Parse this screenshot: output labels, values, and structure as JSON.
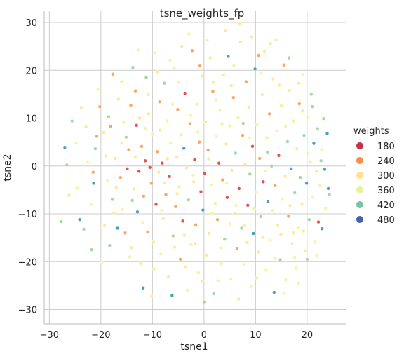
{
  "chart_data": {
    "type": "scatter",
    "title": "tsne_weights_fp",
    "xlabel": "tsne1",
    "ylabel": "tsne2",
    "xlim": [
      -31,
      27.5
    ],
    "ylim": [
      -33,
      32.5
    ],
    "xticks": [
      -30,
      -20,
      -10,
      0,
      10,
      20
    ],
    "yticks": [
      -30,
      -20,
      -10,
      0,
      10,
      20,
      30
    ],
    "xtick_labels": [
      "−30",
      "−20",
      "−10",
      "0",
      "10",
      "20"
    ],
    "ytick_labels": [
      "−30",
      "−20",
      "−10",
      "0",
      "10",
      "20",
      "30"
    ],
    "grid": true,
    "legend": {
      "title": "weights",
      "placement": "right",
      "entries": [
        {
          "label": "180",
          "color": "#c7304a"
        },
        {
          "label": "240",
          "color": "#f58e4d"
        },
        {
          "label": "300",
          "color": "#fde18f"
        },
        {
          "label": "360",
          "color": "#e4f39a"
        },
        {
          "label": "420",
          "color": "#72c6a3"
        },
        {
          "label": "480",
          "color": "#4463ac"
        }
      ]
    },
    "colorscale": {
      "domain": [
        120,
        540
      ],
      "colors": [
        "#9e0142",
        "#d53e4f",
        "#f46d43",
        "#fdae61",
        "#fee08b",
        "#ffffbf",
        "#e6f598",
        "#abdda4",
        "#66c2a5",
        "#3288bd",
        "#5e4fa2"
      ]
    },
    "points": [
      [
        -27.7,
        -11.6,
        420
      ],
      [
        -27.0,
        3.9,
        480
      ],
      [
        -26.6,
        0.2,
        420
      ],
      [
        -25.6,
        9.4,
        420
      ],
      [
        -24.6,
        -4.6,
        360
      ],
      [
        -24.1,
        -11.2,
        480
      ],
      [
        -23.3,
        -13.2,
        420
      ],
      [
        -22.6,
        0.9,
        360
      ],
      [
        -21.8,
        -17.5,
        420
      ],
      [
        -21.5,
        -1.3,
        240
      ],
      [
        -21.4,
        -3.6,
        480
      ],
      [
        -21.1,
        3.6,
        420
      ],
      [
        -20.2,
        12.4,
        240
      ],
      [
        -19.9,
        -20.2,
        360
      ],
      [
        -19.5,
        7.0,
        300
      ],
      [
        -18.7,
        -3.1,
        360
      ],
      [
        -18.3,
        -16.6,
        420
      ],
      [
        -18.1,
        8.3,
        240
      ],
      [
        -17.8,
        -7.0,
        420
      ],
      [
        -17.7,
        19.2,
        240
      ],
      [
        -17.2,
        1.6,
        300
      ],
      [
        -16.8,
        -13.0,
        480
      ],
      [
        -16.6,
        14.0,
        300
      ],
      [
        -16.2,
        -2.4,
        240
      ],
      [
        -15.8,
        -9.1,
        360
      ],
      [
        -15.6,
        9.1,
        360
      ],
      [
        -15.3,
        -14.0,
        240
      ],
      [
        -14.9,
        -0.6,
        180
      ],
      [
        -14.6,
        3.4,
        240
      ],
      [
        -14.2,
        12.7,
        240
      ],
      [
        -14.0,
        -17.1,
        300
      ],
      [
        -13.8,
        20.6,
        420
      ],
      [
        -13.6,
        -4.8,
        300
      ],
      [
        -13.3,
        15.7,
        240
      ],
      [
        -13.1,
        8.5,
        180
      ],
      [
        -12.9,
        -9.6,
        480
      ],
      [
        -12.6,
        -1.1,
        180
      ],
      [
        -12.3,
        -20.4,
        300
      ],
      [
        -12.1,
        4.1,
        240
      ],
      [
        -11.8,
        -25.5,
        480
      ],
      [
        -11.7,
        -6.3,
        240
      ],
      [
        -11.4,
        1.1,
        180
      ],
      [
        -11.2,
        18.5,
        420
      ],
      [
        -10.9,
        -13.8,
        240
      ],
      [
        -10.7,
        10.9,
        300
      ],
      [
        -10.5,
        -0.3,
        180
      ],
      [
        -10.2,
        -3.6,
        240
      ],
      [
        -10.0,
        6.6,
        300
      ],
      [
        -9.8,
        -15.9,
        300
      ],
      [
        -9.5,
        23.7,
        360
      ],
      [
        -9.3,
        -8.0,
        180
      ],
      [
        -9.1,
        3.0,
        240
      ],
      [
        -8.8,
        -1.3,
        300
      ],
      [
        -8.6,
        13.4,
        240
      ],
      [
        -8.4,
        -18.4,
        360
      ],
      [
        -8.1,
        0.6,
        180
      ],
      [
        -7.9,
        -11.0,
        300
      ],
      [
        -7.7,
        17.3,
        420
      ],
      [
        -7.4,
        -6.0,
        240
      ],
      [
        -7.2,
        9.4,
        360
      ],
      [
        -6.9,
        -23.2,
        300
      ],
      [
        -6.7,
        -2.2,
        180
      ],
      [
        -6.5,
        4.8,
        360
      ],
      [
        -6.2,
        -27.1,
        480
      ],
      [
        -6.0,
        -14.6,
        420
      ],
      [
        -5.8,
        20.5,
        300
      ],
      [
        -5.5,
        -8.5,
        240
      ],
      [
        -5.3,
        1.9,
        300
      ],
      [
        -5.1,
        11.8,
        240
      ],
      [
        -4.8,
        -4.4,
        360
      ],
      [
        -4.6,
        -19.5,
        240
      ],
      [
        -4.4,
        6.5,
        300
      ],
      [
        -4.1,
        -11.5,
        180
      ],
      [
        -3.9,
        3.7,
        480
      ],
      [
        -3.7,
        15.2,
        180
      ],
      [
        -3.4,
        -0.4,
        300
      ],
      [
        -3.2,
        -26.0,
        360
      ],
      [
        -3.0,
        -7.1,
        420
      ],
      [
        -2.7,
        8.8,
        240
      ],
      [
        -2.5,
        -16.4,
        360
      ],
      [
        -2.3,
        24.1,
        240
      ],
      [
        -2.0,
        -3.3,
        300
      ],
      [
        -1.8,
        1.3,
        180
      ],
      [
        -1.6,
        -12.3,
        240
      ],
      [
        -1.3,
        12.9,
        300
      ],
      [
        -1.1,
        -22.3,
        360
      ],
      [
        -0.9,
        5.0,
        240
      ],
      [
        -0.6,
        -5.4,
        180
      ],
      [
        -0.4,
        18.8,
        300
      ],
      [
        -0.2,
        -9.2,
        480
      ],
      [
        0.1,
        -1.5,
        180
      ],
      [
        0.3,
        9.2,
        300
      ],
      [
        0.5,
        -18.6,
        300
      ],
      [
        0.8,
        3.3,
        240
      ],
      [
        1.0,
        -14.1,
        300
      ],
      [
        1.2,
        22.6,
        300
      ],
      [
        1.5,
        -4.0,
        360
      ],
      [
        1.7,
        15.6,
        240
      ],
      [
        1.9,
        -26.7,
        420
      ],
      [
        2.2,
        -7.8,
        300
      ],
      [
        2.4,
        6.2,
        360
      ],
      [
        2.6,
        -11.2,
        240
      ],
      [
        2.9,
        0.6,
        180
      ],
      [
        3.1,
        11.6,
        360
      ],
      [
        3.3,
        -20.4,
        300
      ],
      [
        3.6,
        -2.9,
        240
      ],
      [
        3.8,
        19.0,
        300
      ],
      [
        4.0,
        -15.3,
        420
      ],
      [
        4.3,
        4.6,
        300
      ],
      [
        4.5,
        -6.6,
        180
      ],
      [
        4.7,
        22.9,
        480
      ],
      [
        5.0,
        8.4,
        360
      ],
      [
        5.2,
        -23.6,
        360
      ],
      [
        5.4,
        -0.9,
        300
      ],
      [
        5.7,
        14.3,
        240
      ],
      [
        5.9,
        -10.0,
        300
      ],
      [
        6.1,
        2.7,
        420
      ],
      [
        6.4,
        -17.3,
        240
      ],
      [
        6.6,
        10.1,
        300
      ],
      [
        6.8,
        -4.7,
        180
      ],
      [
        7.1,
        25.9,
        300
      ],
      [
        7.3,
        -13.0,
        420
      ],
      [
        7.5,
        6.4,
        240
      ],
      [
        7.8,
        -20.6,
        360
      ],
      [
        8.0,
        0.4,
        300
      ],
      [
        8.2,
        17.6,
        240
      ],
      [
        8.5,
        -8.2,
        180
      ],
      [
        8.7,
        12.3,
        300
      ],
      [
        8.9,
        -1.7,
        420
      ],
      [
        9.2,
        -25.2,
        360
      ],
      [
        9.4,
        4.1,
        180
      ],
      [
        9.6,
        -14.1,
        480
      ],
      [
        9.9,
        20.3,
        480
      ],
      [
        10.1,
        -5.5,
        300
      ],
      [
        10.3,
        8.6,
        360
      ],
      [
        10.6,
        -18.0,
        300
      ],
      [
        10.8,
        1.6,
        240
      ],
      [
        11.0,
        -10.6,
        420
      ],
      [
        11.3,
        14.9,
        300
      ],
      [
        11.5,
        -3.3,
        180
      ],
      [
        11.7,
        24.0,
        300
      ],
      [
        12.0,
        -21.8,
        360
      ],
      [
        12.2,
        5.9,
        300
      ],
      [
        12.4,
        -7.5,
        480
      ],
      [
        12.7,
        10.9,
        240
      ],
      [
        12.9,
        -15.5,
        360
      ],
      [
        13.1,
        0.0,
        420
      ],
      [
        13.4,
        18.2,
        300
      ],
      [
        13.6,
        -26.4,
        480
      ],
      [
        13.8,
        -4.1,
        240
      ],
      [
        14.1,
        7.3,
        360
      ],
      [
        14.3,
        -12.4,
        300
      ],
      [
        14.5,
        2.2,
        180
      ],
      [
        14.8,
        -19.6,
        420
      ],
      [
        15.0,
        12.6,
        300
      ],
      [
        15.2,
        -7.0,
        360
      ],
      [
        15.5,
        21.1,
        240
      ],
      [
        15.7,
        -2.1,
        300
      ],
      [
        15.9,
        -23.8,
        360
      ],
      [
        16.2,
        5.1,
        420
      ],
      [
        16.4,
        -10.5,
        240
      ],
      [
        16.6,
        15.8,
        300
      ],
      [
        16.9,
        -0.6,
        480
      ],
      [
        17.1,
        -16.2,
        360
      ],
      [
        17.3,
        9.4,
        300
      ],
      [
        17.6,
        -5.6,
        420
      ],
      [
        17.8,
        -21.3,
        360
      ],
      [
        18.0,
        3.6,
        300
      ],
      [
        18.3,
        -12.9,
        360
      ],
      [
        18.5,
        13.0,
        240
      ],
      [
        18.7,
        -2.4,
        420
      ],
      [
        19.0,
        -8.0,
        300
      ],
      [
        19.2,
        19.1,
        360
      ],
      [
        19.4,
        6.4,
        420
      ],
      [
        19.7,
        -17.7,
        300
      ],
      [
        19.9,
        -3.6,
        480
      ],
      [
        20.1,
        10.1,
        360
      ],
      [
        20.4,
        -11.2,
        420
      ],
      [
        20.6,
        0.9,
        300
      ],
      [
        20.8,
        15.0,
        420
      ],
      [
        21.1,
        -6.5,
        360
      ],
      [
        21.3,
        4.7,
        480
      ],
      [
        21.5,
        -15.9,
        360
      ],
      [
        21.8,
        -1.1,
        300
      ],
      [
        22.0,
        7.8,
        420
      ],
      [
        22.2,
        -11.7,
        180
      ],
      [
        22.5,
        -4.1,
        360
      ],
      [
        22.7,
        1.1,
        420
      ],
      [
        22.9,
        -13.1,
        480
      ],
      [
        23.2,
        9.9,
        420
      ],
      [
        23.4,
        -0.7,
        480
      ],
      [
        23.6,
        -8.9,
        360
      ],
      [
        23.9,
        6.8,
        480
      ],
      [
        24.1,
        -4.7,
        480
      ],
      [
        24.3,
        -6.0,
        420
      ],
      [
        -24.8,
        4.8,
        360
      ],
      [
        -22.9,
        8.2,
        300
      ],
      [
        -20.6,
        16.0,
        360
      ],
      [
        -19.0,
        2.1,
        300
      ],
      [
        -17.5,
        -9.8,
        300
      ],
      [
        -16.0,
        17.6,
        300
      ],
      [
        -15.1,
        6.0,
        420
      ],
      [
        -13.9,
        -7.2,
        420
      ],
      [
        -12.8,
        24.2,
        360
      ],
      [
        -11.9,
        -11.8,
        360
      ],
      [
        -10.8,
        14.9,
        300
      ],
      [
        -9.7,
        -21.6,
        360
      ],
      [
        -8.5,
        7.5,
        300
      ],
      [
        -7.6,
        -3.5,
        300
      ],
      [
        -6.6,
        22.1,
        360
      ],
      [
        -5.7,
        -17.0,
        300
      ],
      [
        -4.9,
        17.5,
        360
      ],
      [
        -3.8,
        -14.5,
        300
      ],
      [
        -2.9,
        27.6,
        360
      ],
      [
        -2.1,
        -1.9,
        360
      ],
      [
        -1.2,
        7.1,
        360
      ],
      [
        -0.3,
        -24.1,
        300
      ],
      [
        0.6,
        26.3,
        300
      ],
      [
        1.4,
        -9.9,
        360
      ],
      [
        2.3,
        13.8,
        360
      ],
      [
        3.2,
        -17.1,
        360
      ],
      [
        4.1,
        28.3,
        300
      ],
      [
        5.0,
        -12.1,
        360
      ],
      [
        5.8,
        21.0,
        360
      ],
      [
        6.7,
        -27.8,
        300
      ],
      [
        7.6,
        8.9,
        420
      ],
      [
        8.4,
        -16.0,
        300
      ],
      [
        9.3,
        27.0,
        300
      ],
      [
        10.2,
        -23.4,
        300
      ],
      [
        11.1,
        19.4,
        360
      ],
      [
        12.0,
        -1.0,
        360
      ],
      [
        12.9,
        25.6,
        300
      ],
      [
        13.8,
        -19.3,
        300
      ],
      [
        14.6,
        16.9,
        300
      ],
      [
        15.6,
        -26.6,
        360
      ],
      [
        16.5,
        22.6,
        420
      ],
      [
        17.4,
        -14.0,
        300
      ],
      [
        18.3,
        -24.5,
        360
      ],
      [
        19.1,
        11.5,
        300
      ],
      [
        20.0,
        -19.5,
        420
      ],
      [
        -26.2,
        -6.1,
        300
      ],
      [
        -23.8,
        12.2,
        300
      ],
      [
        -21.9,
        -8.0,
        360
      ],
      [
        -20.8,
        6.2,
        240
      ],
      [
        -19.3,
        -12.5,
        300
      ],
      [
        -18.5,
        10.3,
        420
      ],
      [
        -17.0,
        -4.5,
        300
      ],
      [
        -15.9,
        4.8,
        300
      ],
      [
        -14.4,
        -19.0,
        360
      ],
      [
        -13.3,
        1.9,
        300
      ],
      [
        -12.5,
        10.0,
        300
      ],
      [
        -11.3,
        7.9,
        360
      ],
      [
        -10.1,
        -27.2,
        300
      ],
      [
        -9.0,
        19.7,
        300
      ],
      [
        -8.2,
        -9.3,
        360
      ],
      [
        -7.1,
        1.5,
        300
      ],
      [
        -6.1,
        12.9,
        360
      ],
      [
        -5.2,
        -5.8,
        300
      ],
      [
        -4.3,
        25.0,
        300
      ],
      [
        -3.5,
        -21.1,
        300
      ],
      [
        -2.6,
        10.6,
        360
      ],
      [
        -1.7,
        -16.2,
        300
      ],
      [
        -0.8,
        20.9,
        240
      ],
      [
        0.0,
        -28.4,
        420
      ],
      [
        0.9,
        1.5,
        300
      ],
      [
        1.8,
        17.5,
        300
      ],
      [
        2.7,
        -24.0,
        360
      ],
      [
        3.5,
        8.7,
        300
      ],
      [
        4.4,
        -3.6,
        360
      ],
      [
        5.3,
        16.8,
        300
      ],
      [
        6.2,
        -8.2,
        360
      ],
      [
        7.0,
        29.7,
        300
      ],
      [
        7.9,
        -12.5,
        300
      ],
      [
        8.8,
        5.8,
        360
      ],
      [
        9.7,
        -9.0,
        360
      ],
      [
        10.6,
        23.1,
        240
      ],
      [
        11.4,
        -14.9,
        300
      ],
      [
        12.3,
        2.9,
        420
      ],
      [
        13.2,
        -9.3,
        360
      ],
      [
        14.0,
        26.3,
        300
      ],
      [
        14.9,
        -14.3,
        300
      ],
      [
        15.8,
        8.3,
        360
      ],
      [
        16.7,
        -8.3,
        300
      ],
      [
        17.6,
        -19.1,
        360
      ],
      [
        18.4,
        17.3,
        300
      ],
      [
        19.3,
        -13.6,
        300
      ],
      [
        20.2,
        2.6,
        360
      ],
      [
        21.0,
        12.4,
        420
      ],
      [
        21.9,
        -18.8,
        360
      ],
      [
        22.8,
        3.4,
        360
      ]
    ]
  }
}
